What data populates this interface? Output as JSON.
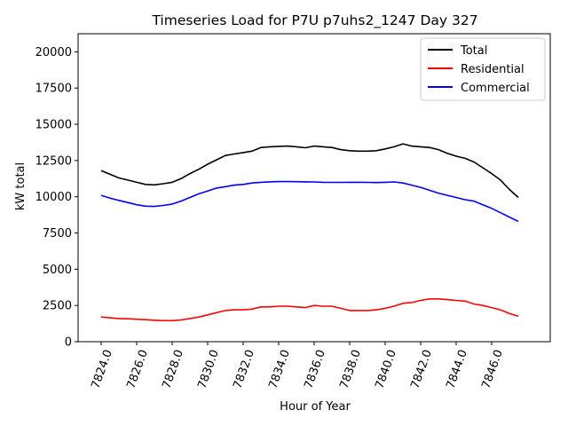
{
  "chart_data": {
    "type": "line",
    "title": "Timeseries Load for P7U p7uhs2_1247  Day 327",
    "xlabel": "Hour of Year",
    "ylabel": "kW total",
    "xlim": [
      7822.7,
      7849.3
    ],
    "ylim": [
      0,
      21250
    ],
    "x_ticks": [
      7824,
      7826,
      7828,
      7830,
      7832,
      7834,
      7836,
      7838,
      7840,
      7842,
      7844,
      7846
    ],
    "x_tick_labels": [
      "7824.0",
      "7826.0",
      "7828.0",
      "7830.0",
      "7832.0",
      "7834.0",
      "7836.0",
      "7838.0",
      "7840.0",
      "7842.0",
      "7844.0",
      "7846.0"
    ],
    "y_ticks": [
      0,
      2500,
      5000,
      7500,
      10000,
      12500,
      15000,
      17500,
      20000
    ],
    "y_tick_labels": [
      "0",
      "2500",
      "5000",
      "7500",
      "10000",
      "12500",
      "15000",
      "17500",
      "20000"
    ],
    "legend_position": "top-right",
    "grid": false,
    "x": [
      7824.0,
      7824.5,
      7825.0,
      7825.5,
      7826.0,
      7826.5,
      7827.0,
      7827.5,
      7828.0,
      7828.5,
      7829.0,
      7829.5,
      7830.0,
      7830.5,
      7831.0,
      7831.5,
      7832.0,
      7832.5,
      7833.0,
      7833.5,
      7834.0,
      7834.5,
      7835.0,
      7835.5,
      7836.0,
      7836.5,
      7837.0,
      7837.5,
      7838.0,
      7838.5,
      7839.0,
      7839.5,
      7840.0,
      7840.5,
      7841.0,
      7841.5,
      7842.0,
      7842.5,
      7843.0,
      7843.5,
      7844.0,
      7844.5,
      7845.0,
      7845.5,
      7846.0,
      7846.5,
      7847.0,
      7847.5
    ],
    "series": [
      {
        "name": "Total",
        "color": "#000000",
        "values": [
          11800,
          11550,
          11300,
          11150,
          11000,
          10850,
          10820,
          10900,
          11000,
          11250,
          11600,
          11900,
          12250,
          12550,
          12850,
          12950,
          13050,
          13150,
          13400,
          13450,
          13480,
          13500,
          13450,
          13380,
          13500,
          13450,
          13400,
          13250,
          13180,
          13150,
          13150,
          13180,
          13300,
          13450,
          13650,
          13500,
          13450,
          13400,
          13250,
          13000,
          12800,
          12650,
          12400,
          12000,
          11600,
          11150,
          10500,
          9950
        ]
      },
      {
        "name": "Residential",
        "color": "#ff0000",
        "values": [
          1700,
          1650,
          1600,
          1580,
          1550,
          1520,
          1480,
          1450,
          1450,
          1500,
          1600,
          1700,
          1850,
          2000,
          2150,
          2200,
          2200,
          2250,
          2400,
          2400,
          2450,
          2450,
          2400,
          2350,
          2500,
          2450,
          2450,
          2300,
          2150,
          2150,
          2150,
          2200,
          2300,
          2450,
          2650,
          2700,
          2850,
          2950,
          2950,
          2900,
          2850,
          2800,
          2600,
          2500,
          2350,
          2200,
          1950,
          1750
        ]
      },
      {
        "name": "Commercial",
        "color": "#0000ff",
        "values": [
          10100,
          9900,
          9750,
          9600,
          9450,
          9350,
          9330,
          9400,
          9500,
          9700,
          9950,
          10200,
          10400,
          10600,
          10700,
          10800,
          10850,
          10950,
          11000,
          11030,
          11050,
          11050,
          11040,
          11030,
          11020,
          11000,
          10990,
          10990,
          11000,
          11000,
          10990,
          10980,
          11000,
          11020,
          10950,
          10800,
          10650,
          10450,
          10250,
          10100,
          9950,
          9800,
          9700,
          9450,
          9200,
          8900,
          8600,
          8300
        ]
      }
    ]
  }
}
